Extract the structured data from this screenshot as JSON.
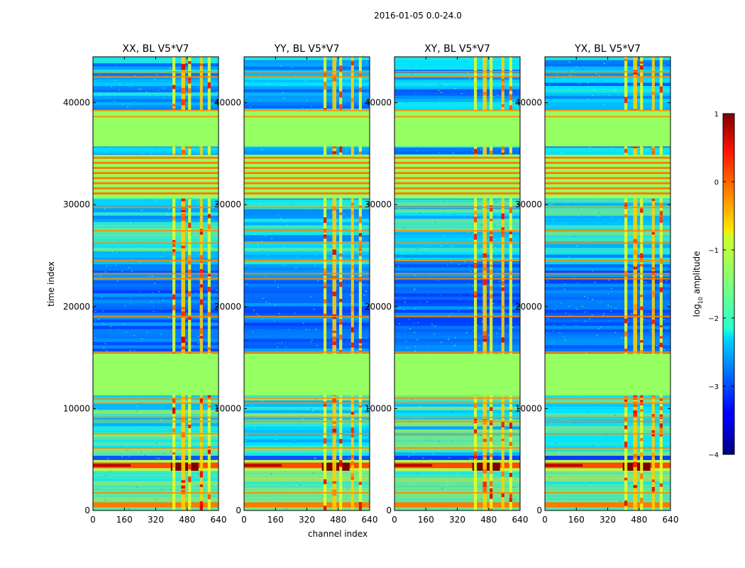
{
  "suptitle": "2016-01-05 0.0-24.0",
  "chart_data": {
    "type": "heatmap",
    "xlabel": "channel index",
    "ylabel": "time index",
    "xlim": [
      0,
      640
    ],
    "ylim": [
      0,
      44500
    ],
    "xticks": [
      "0",
      "160",
      "320",
      "480",
      "640"
    ],
    "yticks": [
      "0",
      "10000",
      "20000",
      "30000",
      "40000"
    ],
    "panels": [
      {
        "title": "XX, BL V5*V7",
        "pol": "XX",
        "rfi_channels": [
          [
            405,
            420
          ],
          [
            450,
            470
          ],
          [
            485,
            500
          ],
          [
            545,
            560
          ],
          [
            585,
            600
          ]
        ]
      },
      {
        "title": "YY, BL V5*V7",
        "pol": "YY",
        "rfi_channels": [
          [
            405,
            420
          ],
          [
            450,
            470
          ],
          [
            485,
            500
          ],
          [
            545,
            560
          ],
          [
            585,
            600
          ]
        ]
      },
      {
        "title": "XY, BL V5*V7",
        "pol": "XY",
        "rfi_channels": [
          [
            405,
            420
          ],
          [
            450,
            470
          ],
          [
            485,
            500
          ],
          [
            545,
            560
          ],
          [
            585,
            600
          ]
        ]
      },
      {
        "title": "YX, BL V5*V7",
        "pol": "YX",
        "rfi_channels": [
          [
            405,
            420
          ],
          [
            450,
            470
          ],
          [
            485,
            500
          ],
          [
            545,
            560
          ],
          [
            585,
            600
          ]
        ]
      }
    ],
    "flagged_time_ranges": [
      [
        11300,
        15400
      ],
      [
        30600,
        34900
      ],
      [
        35700,
        39300
      ]
    ],
    "colorbar": {
      "label": "log10 amplitude",
      "label_text": "log",
      "label_sub": "10",
      "label_rest": " amplitude",
      "range": [
        -4,
        1
      ],
      "ticks": [
        "−4",
        "−3",
        "−2",
        "−1",
        "0",
        "1"
      ]
    }
  }
}
